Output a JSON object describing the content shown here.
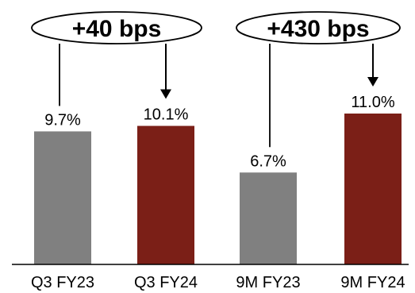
{
  "chart_data": {
    "type": "bar",
    "categories": [
      "Q3 FY23",
      "Q3 FY24",
      "9M FY23",
      "9M FY24"
    ],
    "values": [
      9.7,
      10.1,
      6.7,
      11.0
    ],
    "value_labels": [
      "9.7%",
      "10.1%",
      "6.7%",
      "11.0%"
    ],
    "bar_colors": [
      "#808080",
      "#7b1f17",
      "#808080",
      "#7b1f17"
    ],
    "ylim": [
      0,
      11.0
    ],
    "grid": false,
    "title": "",
    "xlabel": "",
    "ylabel": "",
    "annotations": [
      {
        "text": "+40 bps",
        "from": "Q3 FY23",
        "to": "Q3 FY24"
      },
      {
        "text": "+430 bps",
        "from": "9M FY23",
        "to": "9M FY24"
      }
    ]
  }
}
